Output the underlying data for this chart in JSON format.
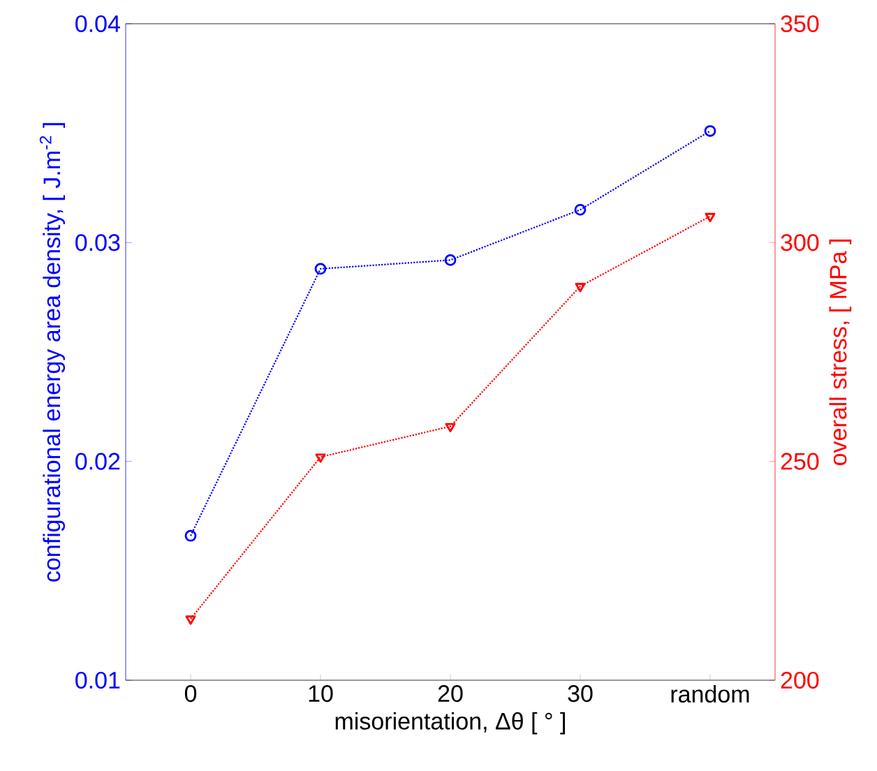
{
  "chart_data": {
    "type": "line",
    "xlabel": "misorientation, Δθ [ ° ]",
    "ylabel": "configurational energy area density, [ J.m$^{-2}$ ]",
    "y2label": "overall stress, [ MPa ]",
    "categories": [
      "0",
      "10",
      "20",
      "30",
      "random"
    ],
    "series": [
      {
        "color": "#0000ff",
        "values": [
          0.0166,
          0.0288,
          0.0292,
          0.0315,
          0.0351
        ],
        "marker": "circle",
        "line_style": "dotted"
      },
      {
        "color": "#ff0000",
        "values": [
          214,
          251,
          258,
          290,
          306
        ],
        "marker": "triangle",
        "line_style": "dotted",
        "axis": "y2"
      }
    ],
    "ylim": [
      0.01,
      0.04
    ],
    "yticks": [
      0.01,
      0.02,
      0.03,
      0.04
    ],
    "y2lim": [
      200,
      350
    ],
    "y2ticks": [
      200,
      250,
      300,
      350
    ],
    "grid": false
  }
}
